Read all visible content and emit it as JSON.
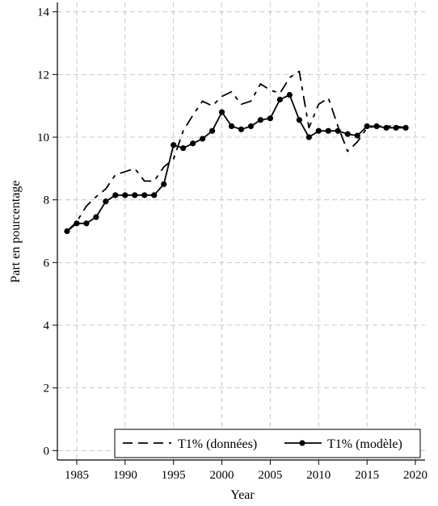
{
  "chart_data": {
    "type": "line",
    "xlabel": "Year",
    "ylabel": "Part en pourcentage",
    "xlim": [
      1983,
      2021
    ],
    "ylim": [
      -0.3,
      14.3
    ],
    "x_ticks": [
      1985,
      1990,
      1995,
      2000,
      2005,
      2010,
      2015,
      2020
    ],
    "y_ticks": [
      0,
      2,
      4,
      6,
      8,
      10,
      12,
      14
    ],
    "grid": true,
    "legend_position": "bottom-right",
    "colors": {
      "line": "#000000",
      "grid": "#c8c8c8",
      "background": "#ffffff"
    },
    "x": [
      1984,
      1985,
      1986,
      1987,
      1988,
      1989,
      1990,
      1991,
      1992,
      1993,
      1994,
      1995,
      1996,
      1997,
      1998,
      1999,
      2000,
      2001,
      2002,
      2003,
      2004,
      2005,
      2006,
      2007,
      2008,
      2009,
      2010,
      2011,
      2012,
      2013,
      2014,
      2015,
      2016,
      2017,
      2018,
      2019
    ],
    "series": [
      {
        "name": "T1% (données)",
        "style": "dashed",
        "values": [
          7.0,
          7.3,
          7.8,
          8.1,
          8.35,
          8.8,
          8.9,
          9.0,
          8.6,
          8.6,
          9.05,
          9.3,
          10.2,
          10.7,
          11.15,
          11.0,
          11.3,
          11.45,
          11.05,
          11.15,
          11.7,
          11.5,
          11.4,
          11.9,
          12.1,
          10.3,
          11.05,
          11.25,
          10.35,
          9.55,
          9.85,
          10.3,
          10.35,
          10.35,
          10.35,
          10.3
        ]
      },
      {
        "name": "T1% (modèle)",
        "style": "solid-markers",
        "values": [
          7.0,
          7.25,
          7.25,
          7.45,
          7.95,
          8.15,
          8.15,
          8.15,
          8.15,
          8.15,
          8.5,
          9.75,
          9.65,
          9.8,
          9.95,
          10.2,
          10.8,
          10.35,
          10.25,
          10.35,
          10.55,
          10.6,
          11.2,
          11.35,
          10.55,
          10.0,
          10.2,
          10.2,
          10.2,
          10.1,
          10.05,
          10.35,
          10.35,
          10.3,
          10.3,
          10.3
        ]
      }
    ]
  }
}
